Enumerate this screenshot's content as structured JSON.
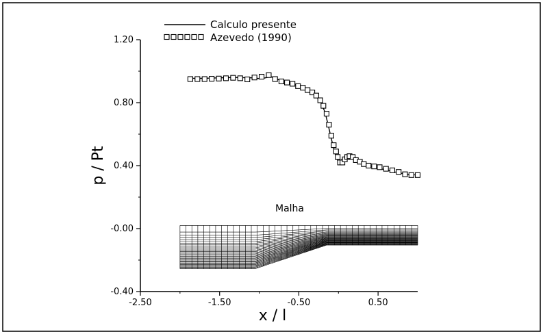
{
  "chart_data": {
    "type": "line",
    "title": "",
    "xlabel": "x  /  l",
    "ylabel": "p  /  Pt",
    "xlim": [
      -2.5,
      1.0
    ],
    "ylim": [
      -0.4,
      1.2
    ],
    "xticks": [
      "-2.50",
      "-1.50",
      "-0.50",
      "0.50"
    ],
    "yticks": [
      "1.20",
      "0.80",
      "0.40",
      "-0.00",
      "-0.40"
    ],
    "xtick_values": [
      -2.5,
      -1.5,
      -0.5,
      0.5
    ],
    "ytick_values": [
      1.2,
      0.8,
      0.4,
      0.0,
      -0.4
    ],
    "grid": false,
    "legend_position": "top",
    "series": [
      {
        "name": "Calculo presente",
        "style": "line",
        "x": [
          -1.9,
          -1.7,
          -1.5,
          -1.3,
          -1.1,
          -0.98,
          -0.85,
          -0.75,
          -0.65,
          -0.55,
          -0.45,
          -0.35,
          -0.28,
          -0.22,
          -0.17,
          -0.13,
          -0.09,
          -0.05,
          -0.02,
          0.01,
          0.03,
          0.05,
          0.08,
          0.11,
          0.15,
          0.2,
          0.28,
          0.38,
          0.5,
          0.62,
          0.75,
          0.88,
          1.0
        ],
        "y": [
          0.955,
          0.955,
          0.958,
          0.96,
          0.958,
          0.952,
          0.965,
          0.945,
          0.93,
          0.915,
          0.895,
          0.87,
          0.84,
          0.8,
          0.74,
          0.66,
          0.57,
          0.49,
          0.44,
          0.42,
          0.43,
          0.445,
          0.455,
          0.46,
          0.455,
          0.435,
          0.415,
          0.4,
          0.385,
          0.37,
          0.355,
          0.345,
          0.34
        ]
      },
      {
        "name": "Azevedo (1990)",
        "style": "markers",
        "marker": "square",
        "x": [
          -1.87,
          -1.78,
          -1.69,
          -1.6,
          -1.51,
          -1.42,
          -1.33,
          -1.24,
          -1.15,
          -1.06,
          -0.97,
          -0.88,
          -0.8,
          -0.72,
          -0.65,
          -0.58,
          -0.51,
          -0.45,
          -0.39,
          -0.33,
          -0.28,
          -0.23,
          -0.19,
          -0.15,
          -0.12,
          -0.09,
          -0.06,
          -0.03,
          -0.01,
          0.02,
          0.05,
          0.08,
          0.11,
          0.14,
          0.18,
          0.22,
          0.27,
          0.32,
          0.38,
          0.45,
          0.52,
          0.6,
          0.68,
          0.76,
          0.84,
          0.92,
          1.0
        ],
        "y": [
          0.95,
          0.95,
          0.95,
          0.952,
          0.953,
          0.955,
          0.958,
          0.955,
          0.948,
          0.96,
          0.965,
          0.975,
          0.95,
          0.935,
          0.928,
          0.92,
          0.905,
          0.895,
          0.88,
          0.865,
          0.845,
          0.815,
          0.78,
          0.73,
          0.66,
          0.59,
          0.53,
          0.49,
          0.455,
          0.42,
          0.42,
          0.44,
          0.455,
          0.46,
          0.455,
          0.435,
          0.425,
          0.41,
          0.4,
          0.395,
          0.39,
          0.38,
          0.37,
          0.36,
          0.345,
          0.34,
          0.34
        ]
      }
    ],
    "annotations": [
      {
        "text": "Malha"
      }
    ],
    "mesh": {
      "label": "Malha",
      "x_start": -2.0,
      "x_ramp_start": -1.05,
      "x_ramp_end": -0.15,
      "x_end": 1.0,
      "top_y": 0.02,
      "bottom_y_left": -0.255,
      "bottom_y_right": -0.105,
      "i_lines": 40,
      "j_lines": 30
    }
  }
}
